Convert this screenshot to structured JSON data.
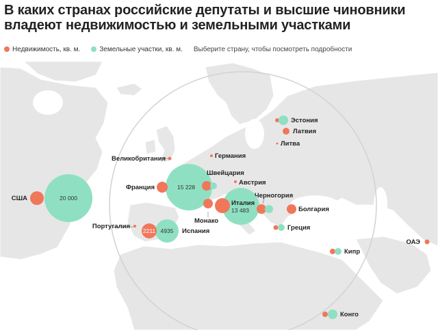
{
  "title": "В каких странах российские депутаты и высшие чиновники владеют недвижимостью и земельными участками",
  "legend": {
    "real_estate": "Недвижимость, кв. м.",
    "land": "Земельные участки, кв. м.",
    "hint": "Выберите страну, чтобы посмотреть подробности"
  },
  "colors": {
    "real_estate": "#f0775a",
    "land": "#8fe0c2",
    "land_mass": "#e6e6e6",
    "sea": "#ffffff",
    "border": "#ffffff"
  },
  "countries": [
    {
      "id": "usa",
      "label": "США",
      "real_estate_label": "",
      "land_label": "20 000"
    },
    {
      "id": "uk",
      "label": "Великобритания",
      "real_estate_label": "",
      "land_label": ""
    },
    {
      "id": "germany",
      "label": "Германия",
      "real_estate_label": "",
      "land_label": ""
    },
    {
      "id": "switzerland",
      "label": "Швейцария",
      "real_estate_label": "",
      "land_label": ""
    },
    {
      "id": "austria",
      "label": "Австрия",
      "real_estate_label": "",
      "land_label": ""
    },
    {
      "id": "france",
      "label": "Франция",
      "real_estate_label": "",
      "land_label": "15 228"
    },
    {
      "id": "monaco",
      "label": "Монако",
      "real_estate_label": "",
      "land_label": ""
    },
    {
      "id": "italy",
      "label": "Италия",
      "real_estate_label": "",
      "land_label": "13 483"
    },
    {
      "id": "montenegro",
      "label": "Черногория",
      "real_estate_label": "",
      "land_label": ""
    },
    {
      "id": "bulgaria",
      "label": "Болгария",
      "real_estate_label": "",
      "land_label": ""
    },
    {
      "id": "greece",
      "label": "Греция",
      "real_estate_label": "",
      "land_label": ""
    },
    {
      "id": "portugal",
      "label": "Португалия",
      "real_estate_label": "",
      "land_label": ""
    },
    {
      "id": "spain",
      "label": "Испания",
      "real_estate_label": "2211",
      "land_label": "4935"
    },
    {
      "id": "estonia",
      "label": "Эстония",
      "real_estate_label": "",
      "land_label": ""
    },
    {
      "id": "latvia",
      "label": "Латвия",
      "real_estate_label": "",
      "land_label": ""
    },
    {
      "id": "lithuania",
      "label": "Литва",
      "real_estate_label": "",
      "land_label": ""
    },
    {
      "id": "cyprus",
      "label": "Кипр",
      "real_estate_label": "",
      "land_label": ""
    },
    {
      "id": "uae",
      "label": "ОАЭ",
      "real_estate_label": "",
      "land_label": ""
    },
    {
      "id": "congo",
      "label": "Конго",
      "real_estate_label": "",
      "land_label": ""
    }
  ]
}
